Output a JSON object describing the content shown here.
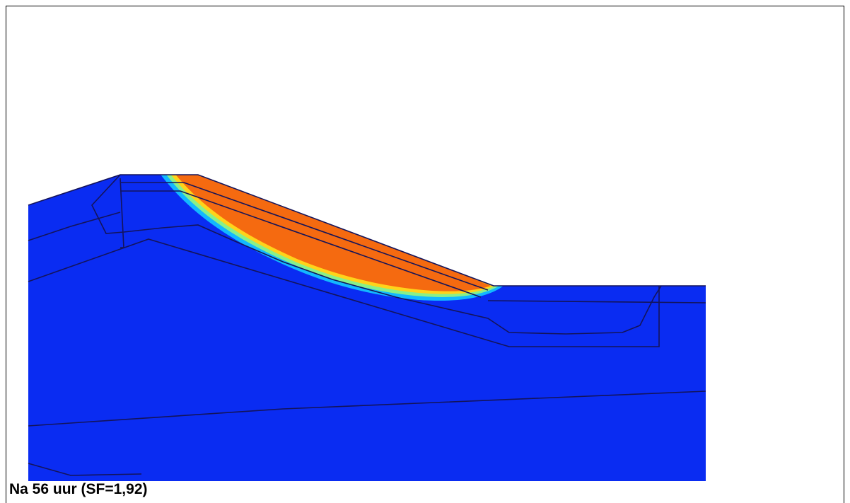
{
  "caption": "Na 56 uur (SF=1,92)"
}
